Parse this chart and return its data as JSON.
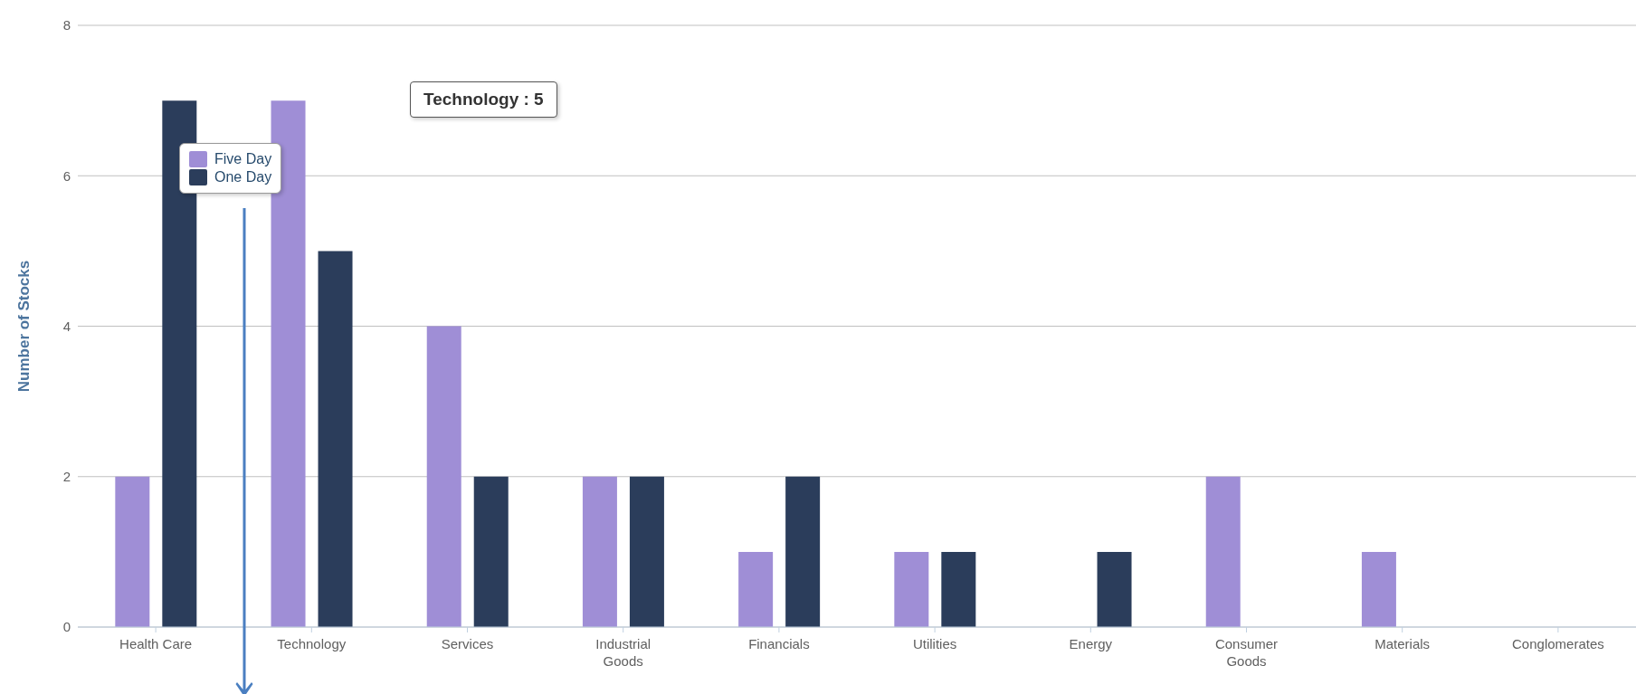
{
  "chart_data": {
    "type": "bar",
    "ylabel": "Number of Stocks",
    "categories": [
      "Health Care",
      "Technology",
      "Services",
      "Industrial Goods",
      "Financials",
      "Utilities",
      "Energy",
      "Consumer Goods",
      "Materials",
      "Conglomerates"
    ],
    "series": [
      {
        "name": "Five Day",
        "color": "#9f8ed6",
        "values": [
          2,
          7,
          4,
          2,
          1,
          1,
          0,
          2,
          1,
          0
        ]
      },
      {
        "name": "One Day",
        "color": "#2b3d5b",
        "values": [
          7,
          5,
          2,
          2,
          2,
          1,
          1,
          0,
          0,
          0
        ]
      }
    ],
    "ylim": [
      0,
      8
    ],
    "yticks": [
      0,
      2,
      4,
      6,
      8
    ],
    "grid": "y",
    "legend": "top left",
    "annotations": [
      "Technology : 5"
    ]
  }
}
